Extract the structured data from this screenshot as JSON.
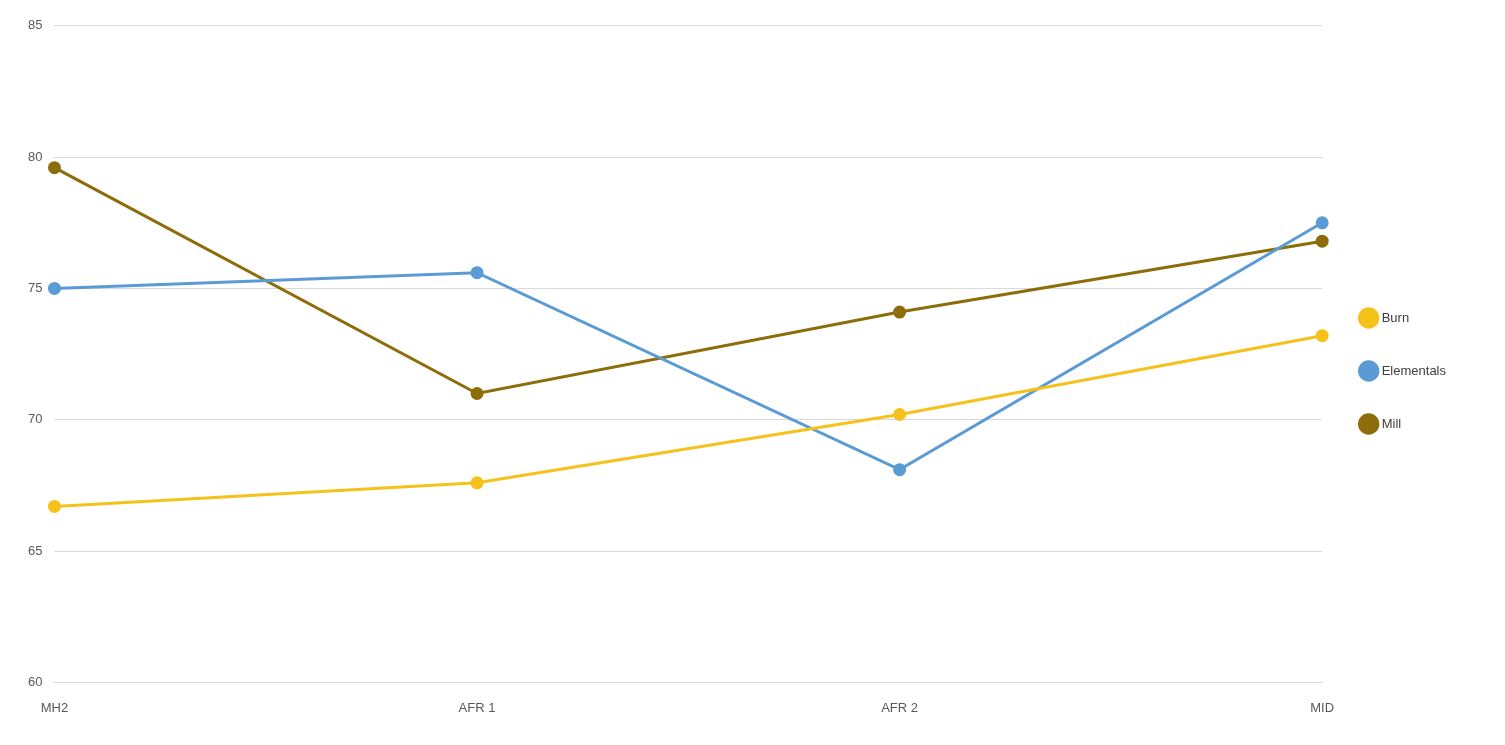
{
  "chart_data": {
    "type": "line",
    "categories": [
      "MH2",
      "AFR 1",
      "AFR 2",
      "MID"
    ],
    "series": [
      {
        "name": "Burn",
        "color": "#f5c11b",
        "values": [
          66.7,
          67.6,
          70.2,
          73.2
        ]
      },
      {
        "name": "Elementals",
        "color": "#5b9bd5",
        "values": [
          75.0,
          75.6,
          68.1,
          77.5
        ]
      },
      {
        "name": "Mill",
        "color": "#8c6d0a",
        "values": [
          79.6,
          71.0,
          74.1,
          76.8
        ]
      }
    ],
    "ylim": [
      60,
      85
    ],
    "yticks": [
      60,
      65,
      70,
      75,
      80,
      85
    ],
    "grid": true,
    "legend": "right",
    "marker": "circle"
  }
}
